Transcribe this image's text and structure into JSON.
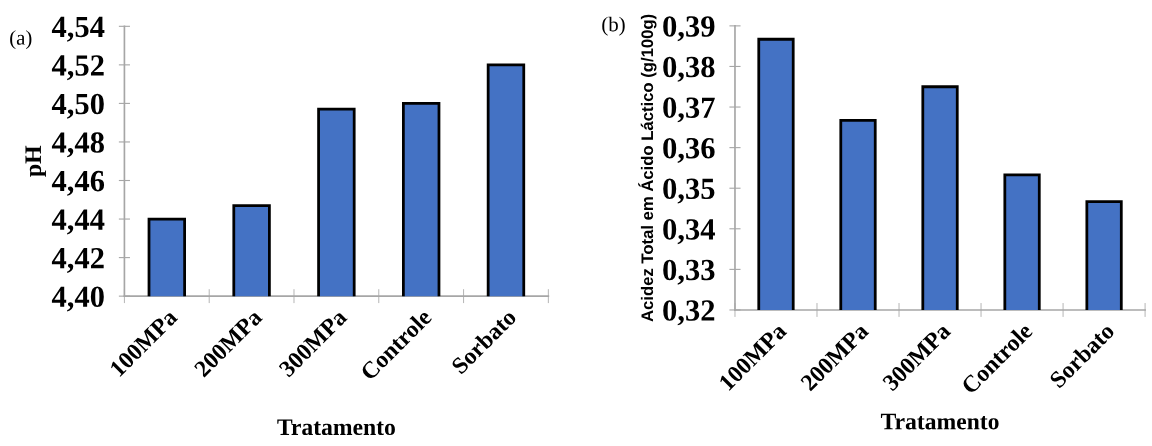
{
  "chart_data": [
    {
      "type": "bar",
      "xlabel": "Tratamento",
      "ylabel": "pH",
      "annotations": [
        "(a)"
      ],
      "categories": [
        "100MPa",
        "200MPa",
        "300MPa",
        "Controle",
        "Sorbato"
      ],
      "values": [
        4.44,
        4.447,
        4.497,
        4.5,
        4.52
      ],
      "color": "#4472c4",
      "ylim": [
        4.4,
        4.54
      ],
      "yticks": [
        {
          "value": 4.4,
          "label": "4,40"
        },
        {
          "value": 4.42,
          "label": "4,42"
        },
        {
          "value": 4.44,
          "label": "4,44"
        },
        {
          "value": 4.46,
          "label": "4,46"
        },
        {
          "value": 4.48,
          "label": "4,48"
        },
        {
          "value": 4.5,
          "label": "4,50"
        },
        {
          "value": 4.52,
          "label": "4,52"
        },
        {
          "value": 4.54,
          "label": "4,54"
        }
      ],
      "grid": false,
      "legend": false
    },
    {
      "type": "bar",
      "xlabel": "Tratamento",
      "ylabel": "Acidez Total em Ácido Láctico (g/100g)",
      "annotations": [
        "(b)"
      ],
      "categories": [
        "100MPa",
        "200MPa",
        "300MPa",
        "Controle",
        "Sorbato"
      ],
      "values": [
        0.3867,
        0.3667,
        0.375,
        0.3533,
        0.3467
      ],
      "color": "#4472c4",
      "ylim": [
        0.32,
        0.39
      ],
      "yticks": [
        {
          "value": 0.32,
          "label": "0,32"
        },
        {
          "value": 0.33,
          "label": "0,33"
        },
        {
          "value": 0.34,
          "label": "0,34"
        },
        {
          "value": 0.35,
          "label": "0,35"
        },
        {
          "value": 0.36,
          "label": "0,36"
        },
        {
          "value": 0.37,
          "label": "0,37"
        },
        {
          "value": 0.38,
          "label": "0,38"
        },
        {
          "value": 0.39,
          "label": "0,39"
        }
      ],
      "grid": false,
      "legend": false
    }
  ]
}
